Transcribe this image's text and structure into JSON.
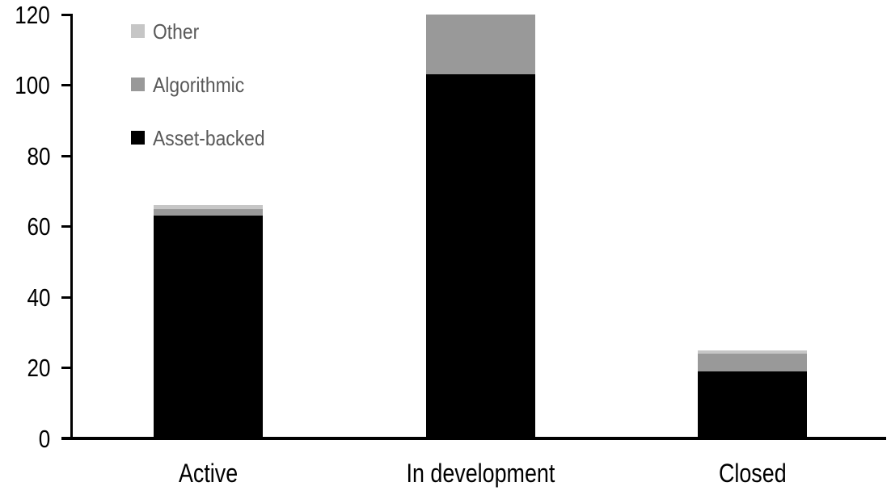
{
  "chart_data": {
    "type": "bar",
    "stacked": true,
    "title": "",
    "xlabel": "",
    "ylabel": "",
    "categories": [
      "Active",
      "In development",
      "Closed"
    ],
    "series": [
      {
        "name": "Asset-backed",
        "color": "#000000",
        "values": [
          63,
          103,
          19
        ]
      },
      {
        "name": "Algorithmic",
        "color": "#999999",
        "values": [
          2,
          17,
          5
        ]
      },
      {
        "name": "Other",
        "color": "#c6c6c6",
        "values": [
          1,
          0,
          1
        ]
      }
    ],
    "totals": [
      66,
      120,
      25
    ],
    "ylim": [
      0,
      120
    ],
    "yticks": [
      0,
      20,
      40,
      60,
      80,
      100,
      120
    ],
    "grid": false,
    "legend_position": "top-left",
    "legend_order": [
      "Other",
      "Algorithmic",
      "Asset-backed"
    ],
    "legend_text_color": "#595959",
    "axis_color": "#000000",
    "background_color": "#ffffff"
  }
}
